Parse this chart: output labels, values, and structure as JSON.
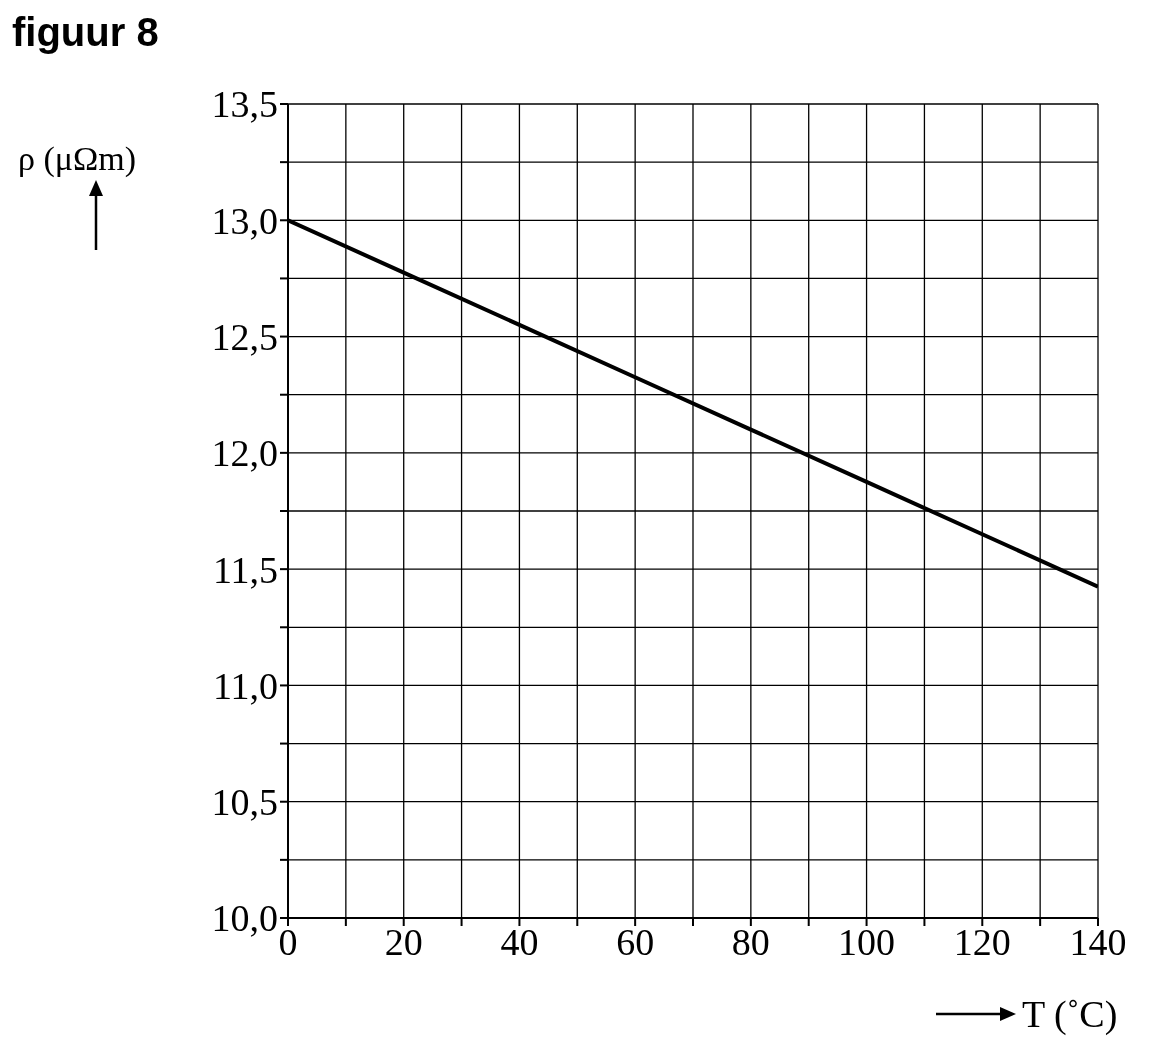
{
  "chart_data": {
    "type": "line",
    "title": "figuur 8",
    "xlabel": "T (˚C)",
    "ylabel": "ρ (μΩm)",
    "x": [
      0,
      20,
      40,
      60,
      80,
      100,
      120,
      140
    ],
    "series": [
      {
        "color": "#000000",
        "values": [
          13.0,
          12.775,
          12.55,
          12.325,
          12.1,
          11.875,
          11.65,
          11.425
        ]
      }
    ],
    "xlim": [
      0,
      140
    ],
    "ylim": [
      10.0,
      13.5
    ],
    "xticks": [
      0,
      {
        "value": 10,
        "label": null
      },
      20,
      {
        "value": 30,
        "label": null
      },
      40,
      {
        "value": 50,
        "label": null
      },
      60,
      {
        "value": 70,
        "label": null
      },
      80,
      {
        "value": 90,
        "label": null
      },
      100,
      {
        "value": 110,
        "label": null
      },
      120,
      {
        "value": 130,
        "label": null
      },
      140
    ],
    "yticks": [
      {
        "value": 10.0,
        "label": "10,0"
      },
      {
        "value": 10.25,
        "label": null
      },
      {
        "value": 10.5,
        "label": "10,5"
      },
      {
        "value": 10.75,
        "label": null
      },
      {
        "value": 11.0,
        "label": "11,0"
      },
      {
        "value": 11.25,
        "label": null
      },
      {
        "value": 11.5,
        "label": "11,5"
      },
      {
        "value": 11.75,
        "label": null
      },
      {
        "value": 12.0,
        "label": "12,0"
      },
      {
        "value": 12.25,
        "label": null
      },
      {
        "value": 12.5,
        "label": "12,5"
      },
      {
        "value": 12.75,
        "label": null
      },
      {
        "value": 13.0,
        "label": "13,0"
      },
      {
        "value": 13.25,
        "label": null
      },
      {
        "value": 13.5,
        "label": "13,5"
      }
    ],
    "grid": true,
    "marker": "none",
    "line_style": "solid"
  }
}
